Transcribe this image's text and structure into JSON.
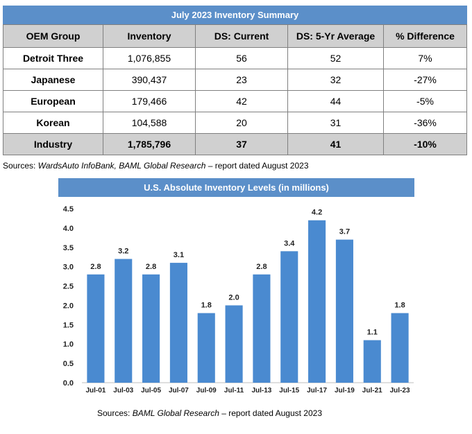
{
  "table": {
    "title": "July 2023 Inventory Summary",
    "headers": [
      "OEM Group",
      "Inventory",
      "DS: Current",
      "DS: 5-Yr Average",
      "% Difference"
    ],
    "rows": [
      [
        "Detroit Three",
        "1,076,855",
        "56",
        "52",
        "7%"
      ],
      [
        "Japanese",
        "390,437",
        "23",
        "32",
        "-27%"
      ],
      [
        "European",
        "179,466",
        "42",
        "44",
        "-5%"
      ],
      [
        "Korean",
        "104,588",
        "20",
        "31",
        "-36%"
      ],
      [
        "Industry",
        "1,785,796",
        "37",
        "41",
        "-10%"
      ]
    ]
  },
  "source1": {
    "prefix": "Sources: ",
    "italic": "WardsAuto InfoBank, BAML Global Research",
    "suffix": " – report dated August 2023"
  },
  "source2": {
    "prefix": "Sources: ",
    "italic": "BAML Global Research",
    "suffix": " – report dated August 2023"
  },
  "chart_data": {
    "type": "bar",
    "title": "U.S. Absolute Inventory Levels (in millions)",
    "categories": [
      "Jul-01",
      "Jul-03",
      "Jul-05",
      "Jul-07",
      "Jul-09",
      "Jul-11",
      "Jul-13",
      "Jul-15",
      "Jul-17",
      "Jul-19",
      "Jul-21",
      "Jul-23"
    ],
    "values": [
      2.8,
      3.2,
      2.8,
      3.1,
      1.8,
      2.0,
      2.8,
      3.4,
      4.2,
      3.7,
      1.1,
      1.8
    ],
    "value_labels": [
      "2.8",
      "3.2",
      "2.8",
      "3.1",
      "1.8",
      "2.0",
      "2.8",
      "3.4",
      "4.2",
      "3.7",
      "1.1",
      "1.8"
    ],
    "y_ticks": [
      "0.0",
      "0.5",
      "1.0",
      "1.5",
      "2.0",
      "2.5",
      "3.0",
      "3.5",
      "4.0",
      "4.5"
    ],
    "ylim": [
      0,
      4.5
    ],
    "grid": false,
    "bar_color": "#4a8ad0"
  }
}
